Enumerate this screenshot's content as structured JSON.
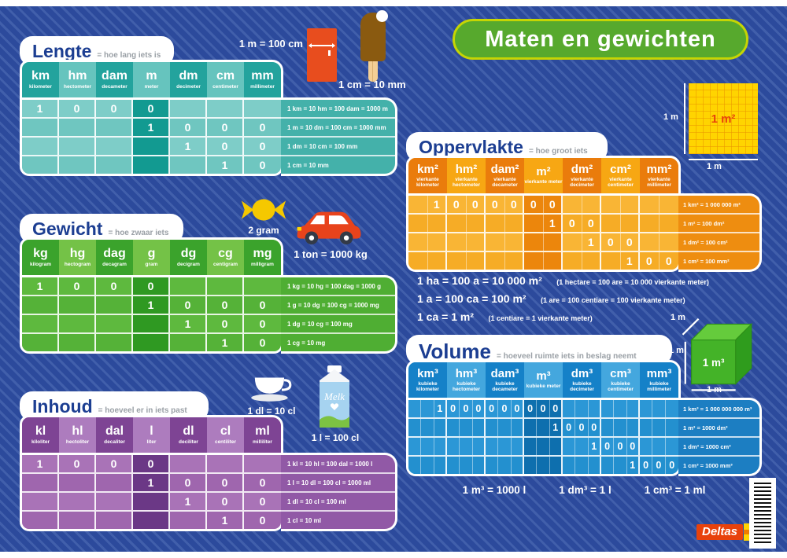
{
  "title": "Maten en gewichten",
  "top_labels": {
    "fridge": "1 m = 100 cm",
    "popsicle": "1 cm = 10 mm"
  },
  "icons": {
    "candy": "2 gram",
    "car": "1 ton = 1000 kg",
    "cup": "1 dl = 10 cl",
    "milk": "1 l = 100 cl",
    "milk_brand": "Melk"
  },
  "visuals": {
    "square": {
      "area": "1 m²",
      "side": "1 m",
      "base": "1 m"
    },
    "cube": {
      "volume": "1 m³",
      "edge_top": "1 m",
      "edge_side": "1 m",
      "edge_base": "1 m"
    }
  },
  "colors": {
    "background": "#2c4a9c",
    "title_pill": "#57a92d",
    "title_border": "#c6d503",
    "lengte_teal": "#23a39d",
    "gewicht_green": "#3ba32c",
    "inhoud_purple": "#7e4494",
    "oppervlakte_orange": "#ea7c0c",
    "volume_blue": "#1581c8"
  },
  "tables": {
    "lengte": {
      "title": "Lengte",
      "subtitle": "= hoe lang iets is",
      "sub_cols": 1,
      "columns": [
        {
          "abbr": "km",
          "full": "kilometer"
        },
        {
          "abbr": "hm",
          "full": "hectometer"
        },
        {
          "abbr": "dam",
          "full": "decameter"
        },
        {
          "abbr": "m",
          "full": "meter"
        },
        {
          "abbr": "dm",
          "full": "decimeter"
        },
        {
          "abbr": "cm",
          "full": "centimeter"
        },
        {
          "abbr": "mm",
          "full": "millimeter"
        }
      ],
      "rows": [
        {
          "cells": [
            "1",
            "0",
            "0",
            "0",
            "",
            "",
            ""
          ],
          "note": "1 km = 10 hm = 100 dam = 1000 m"
        },
        {
          "cells": [
            "",
            "",
            "",
            "1",
            "0",
            "0",
            "0"
          ],
          "note": "1 m = 10 dm = 100 cm = 1000 mm"
        },
        {
          "cells": [
            "",
            "",
            "",
            "",
            "1",
            "0",
            "0"
          ],
          "note": "1 dm = 10 cm = 100 mm"
        },
        {
          "cells": [
            "",
            "",
            "",
            "",
            "",
            "1",
            "0"
          ],
          "note": "1 cm = 10 mm"
        }
      ]
    },
    "gewicht": {
      "title": "Gewicht",
      "subtitle": "= hoe zwaar iets is",
      "sub_cols": 1,
      "columns": [
        {
          "abbr": "kg",
          "full": "kilogram"
        },
        {
          "abbr": "hg",
          "full": "hectogram"
        },
        {
          "abbr": "dag",
          "full": "decagram"
        },
        {
          "abbr": "g",
          "full": "gram"
        },
        {
          "abbr": "dg",
          "full": "decigram"
        },
        {
          "abbr": "cg",
          "full": "centigram"
        },
        {
          "abbr": "mg",
          "full": "milligram"
        }
      ],
      "rows": [
        {
          "cells": [
            "1",
            "0",
            "0",
            "0",
            "",
            "",
            ""
          ],
          "note": "1 kg = 10 hg = 100 dag = 1000 g"
        },
        {
          "cells": [
            "",
            "",
            "",
            "1",
            "0",
            "0",
            "0"
          ],
          "note": "1 g = 10 dg = 100 cg = 1000 mg"
        },
        {
          "cells": [
            "",
            "",
            "",
            "",
            "1",
            "0",
            "0"
          ],
          "note": "1 dg = 10 cg = 100 mg"
        },
        {
          "cells": [
            "",
            "",
            "",
            "",
            "",
            "1",
            "0"
          ],
          "note": "1 cg = 10 mg"
        }
      ]
    },
    "inhoud": {
      "title": "Inhoud",
      "subtitle": "= hoeveel er in iets past",
      "sub_cols": 1,
      "columns": [
        {
          "abbr": "kl",
          "full": "kiloliter"
        },
        {
          "abbr": "hl",
          "full": "hectoliter"
        },
        {
          "abbr": "dal",
          "full": "decaliter"
        },
        {
          "abbr": "l",
          "full": "liter"
        },
        {
          "abbr": "dl",
          "full": "deciliter"
        },
        {
          "abbr": "cl",
          "full": "centiliter"
        },
        {
          "abbr": "ml",
          "full": "milliliter"
        }
      ],
      "rows": [
        {
          "cells": [
            "1",
            "0",
            "0",
            "0",
            "",
            "",
            ""
          ],
          "note": "1 kl = 10 hl = 100 dal = 1000 l"
        },
        {
          "cells": [
            "",
            "",
            "",
            "1",
            "0",
            "0",
            "0"
          ],
          "note": "1 l = 10 dl = 100 cl = 1000 ml"
        },
        {
          "cells": [
            "",
            "",
            "",
            "",
            "1",
            "0",
            "0"
          ],
          "note": "1 dl = 10 cl = 100 ml"
        },
        {
          "cells": [
            "",
            "",
            "",
            "",
            "",
            "1",
            "0"
          ],
          "note": "1 cl = 10 ml"
        }
      ]
    },
    "oppervlakte": {
      "title": "Oppervlakte",
      "subtitle": "= hoe groot iets is",
      "sub_cols": 2,
      "columns": [
        {
          "abbr": "km²",
          "full": "vierkante kilometer"
        },
        {
          "abbr": "hm²",
          "full": "vierkante hectometer"
        },
        {
          "abbr": "dam²",
          "full": "vierkante decameter"
        },
        {
          "abbr": "m²",
          "full": "vierkante meter"
        },
        {
          "abbr": "dm²",
          "full": "vierkante decimeter"
        },
        {
          "abbr": "cm²",
          "full": "vierkante centimeter"
        },
        {
          "abbr": "mm²",
          "full": "vierkante millimeter"
        }
      ],
      "rows": [
        {
          "cells": [
            "",
            "1",
            "0",
            "0",
            "0",
            "0",
            "0",
            "0",
            "",
            "",
            "",
            "",
            "",
            ""
          ],
          "note": "1 km² = 1 000 000 m²"
        },
        {
          "cells": [
            "",
            "",
            "",
            "",
            "",
            "",
            "",
            "1",
            "0",
            "0",
            "",
            "",
            "",
            ""
          ],
          "note": "1 m² = 100 dm²"
        },
        {
          "cells": [
            "",
            "",
            "",
            "",
            "",
            "",
            "",
            "",
            "",
            "1",
            "0",
            "0",
            "",
            ""
          ],
          "note": "1 dm² = 100 cm²"
        },
        {
          "cells": [
            "",
            "",
            "",
            "",
            "",
            "",
            "",
            "",
            "",
            "",
            "",
            "1",
            "0",
            "0"
          ],
          "note": "1 cm² = 100 mm²"
        }
      ],
      "formulas": [
        {
          "main": "1 ha = 100 a = 10 000 m²",
          "paren": "(1 hectare = 100 are = 10 000 vierkante meter)"
        },
        {
          "main": "1 a = 100 ca = 100 m²",
          "paren": "(1 are = 100 centiare = 100 vierkante meter)"
        },
        {
          "main": "1 ca = 1 m²",
          "paren": "(1 centiare = 1 vierkante meter)"
        }
      ]
    },
    "volume": {
      "title": "Volume",
      "subtitle": "= hoeveel ruimte iets in beslag neemt",
      "sub_cols": 3,
      "columns": [
        {
          "abbr": "km³",
          "full": "kubieke kilometer"
        },
        {
          "abbr": "hm³",
          "full": "kubieke hectometer"
        },
        {
          "abbr": "dam³",
          "full": "kubieke decameter"
        },
        {
          "abbr": "m³",
          "full": "kubieke meter"
        },
        {
          "abbr": "dm³",
          "full": "kubieke decimeter"
        },
        {
          "abbr": "cm³",
          "full": "kubieke centimeter"
        },
        {
          "abbr": "mm³",
          "full": "kubieke millimeter"
        }
      ],
      "rows": [
        {
          "cells": [
            "",
            "",
            "1",
            "0",
            "0",
            "0",
            "0",
            "0",
            "0",
            "0",
            "0",
            "0",
            "",
            "",
            "",
            "",
            "",
            "",
            "",
            "",
            ""
          ],
          "note": "1 km³ = 1 000 000 000 m³"
        },
        {
          "cells": [
            "",
            "",
            "",
            "",
            "",
            "",
            "",
            "",
            "",
            "",
            "",
            "1",
            "0",
            "0",
            "0",
            "",
            "",
            "",
            "",
            "",
            ""
          ],
          "note": "1 m³ = 1000 dm³"
        },
        {
          "cells": [
            "",
            "",
            "",
            "",
            "",
            "",
            "",
            "",
            "",
            "",
            "",
            "",
            "",
            "",
            "1",
            "0",
            "0",
            "0",
            "",
            "",
            ""
          ],
          "note": "1 dm³ = 1000 cm³"
        },
        {
          "cells": [
            "",
            "",
            "",
            "",
            "",
            "",
            "",
            "",
            "",
            "",
            "",
            "",
            "",
            "",
            "",
            "",
            "",
            "1",
            "0",
            "0",
            "0"
          ],
          "note": "1 cm³ = 1000 mm³"
        }
      ],
      "formulas": [
        "1 m³ = 1000 l",
        "1 dm³ = 1 l",
        "1 cm³ = 1 ml"
      ]
    }
  },
  "footer": {
    "brand": "Deltas"
  }
}
